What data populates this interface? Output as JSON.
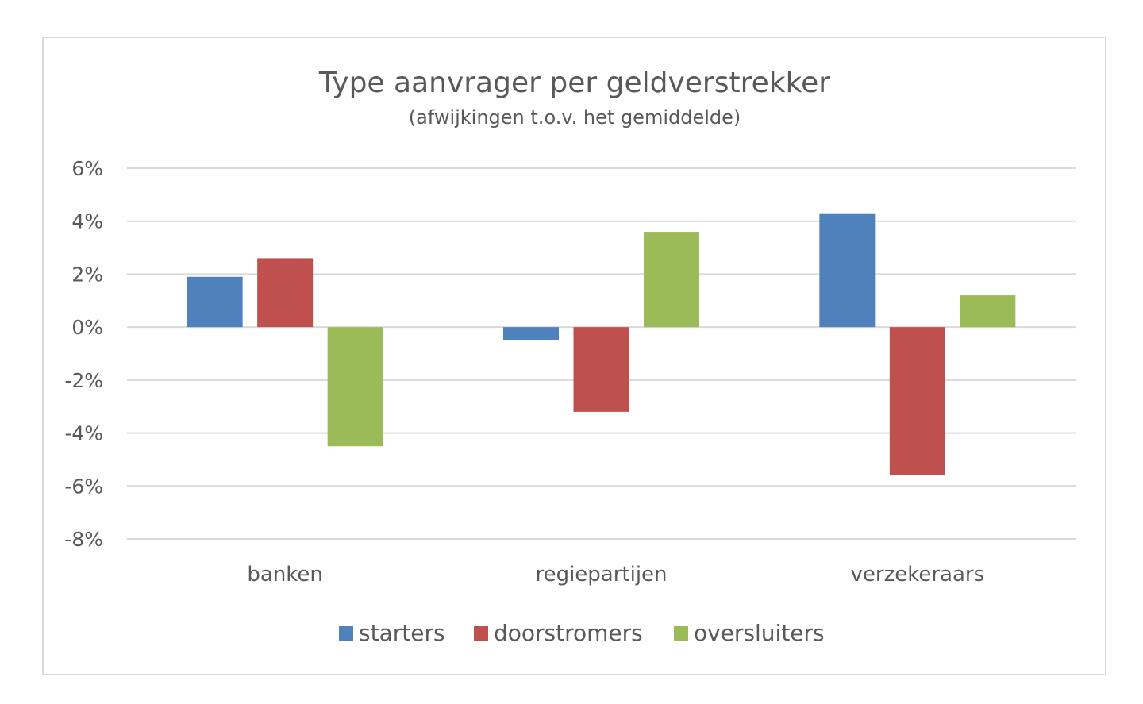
{
  "chart_data": {
    "type": "bar",
    "title": "Type aanvrager per geldverstrekker",
    "subtitle": "(afwijkingen t.o.v. het gemiddelde)",
    "categories": [
      "banken",
      "regiepartijen",
      "verzekeraars"
    ],
    "series": [
      {
        "name": "starters",
        "color": "#4f81bd",
        "values": [
          1.9,
          -0.5,
          4.3
        ]
      },
      {
        "name": "doorstromers",
        "color": "#c0504d",
        "values": [
          2.6,
          -3.2,
          -5.6
        ]
      },
      {
        "name": "oversluiters",
        "color": "#9bbb59",
        "values": [
          -4.5,
          3.6,
          1.2
        ]
      }
    ],
    "ylim": [
      -8,
      6
    ],
    "yticks": [
      6,
      4,
      2,
      0,
      -2,
      -4,
      -6,
      -8
    ],
    "ytick_labels": [
      "6%",
      "4%",
      "2%",
      "0%",
      "-2%",
      "-4%",
      "-6%",
      "-8%"
    ],
    "xlabel": "",
    "ylabel": "",
    "grid": true,
    "legend_position": "bottom",
    "gridline_color": "#d9d9d9",
    "text_color": "#595959"
  }
}
